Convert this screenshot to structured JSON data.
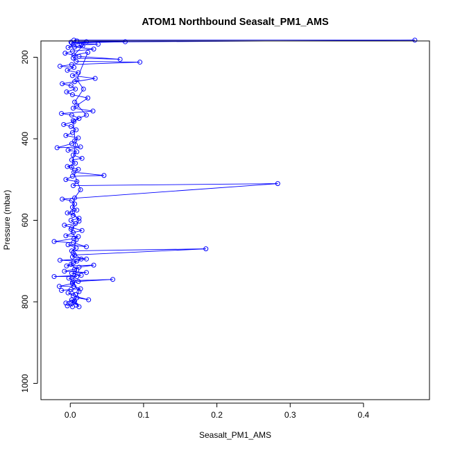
{
  "chart_data": {
    "type": "scatter",
    "title": "ATOM1 Northbound Seasalt_PM1_AMS",
    "xlabel": "Seasalt_PM1_AMS",
    "ylabel": "Pressure (mbar)",
    "xlim": [
      -0.04,
      0.49
    ],
    "ylim": [
      1040,
      160
    ],
    "y_reversed": true,
    "x_ticks": [
      0.0,
      0.1,
      0.2,
      0.3,
      0.4
    ],
    "x_tick_labels": [
      "0.0",
      "0.1",
      "0.2",
      "0.3",
      "0.4"
    ],
    "y_ticks": [
      200,
      400,
      600,
      800,
      1000
    ],
    "y_tick_labels": [
      "200",
      "400",
      "600",
      "800",
      "1000"
    ],
    "grid": false,
    "legend": "none",
    "series": [
      {
        "color": "#0000ff",
        "marker": "open-circle",
        "connected": true,
        "points": [
          [
            0.003,
            812
          ],
          [
            0.001,
            805
          ],
          [
            -0.004,
            810
          ],
          [
            0.006,
            798
          ],
          [
            0.012,
            812
          ],
          [
            0.002,
            795
          ],
          [
            -0.006,
            803
          ],
          [
            0.009,
            790
          ],
          [
            0.025,
            795
          ],
          [
            0.004,
            785
          ],
          [
            -0.003,
            778
          ],
          [
            0.007,
            782
          ],
          [
            0.001,
            770
          ],
          [
            -0.012,
            772
          ],
          [
            0.014,
            768
          ],
          [
            0.005,
            762
          ],
          [
            -0.015,
            762
          ],
          [
            0.003,
            755
          ],
          [
            0.011,
            750
          ],
          [
            0.058,
            745
          ],
          [
            0.004,
            748
          ],
          [
            -0.002,
            742
          ],
          [
            0.009,
            738
          ],
          [
            -0.022,
            738
          ],
          [
            0.015,
            735
          ],
          [
            0.002,
            730
          ],
          [
            0.022,
            728
          ],
          [
            -0.008,
            725
          ],
          [
            0.006,
            720
          ],
          [
            0.012,
            715
          ],
          [
            0.032,
            710
          ],
          [
            -0.005,
            712
          ],
          [
            0.004,
            705
          ],
          [
            0.009,
            700
          ],
          [
            -0.014,
            698
          ],
          [
            0.022,
            695
          ],
          [
            0.003,
            690
          ],
          [
            0.006,
            685
          ],
          [
            0.185,
            670
          ],
          [
            0.002,
            675
          ],
          [
            0.008,
            668
          ],
          [
            -0.003,
            660
          ],
          [
            0.022,
            665
          ],
          [
            0.004,
            655
          ],
          [
            -0.022,
            652
          ],
          [
            0.005,
            645
          ],
          [
            0.011,
            640
          ],
          [
            -0.006,
            638
          ],
          [
            0.004,
            630
          ],
          [
            0.016,
            625
          ],
          [
            0.002,
            618
          ],
          [
            -0.008,
            612
          ],
          [
            0.007,
            608
          ],
          [
            0.001,
            600
          ],
          [
            0.012,
            595
          ],
          [
            0.004,
            588
          ],
          [
            -0.004,
            582
          ],
          [
            0.009,
            575
          ],
          [
            0.003,
            568
          ],
          [
            0.006,
            560
          ],
          [
            0.002,
            552
          ],
          [
            -0.011,
            548
          ],
          [
            0.283,
            510
          ],
          [
            0.004,
            515
          ],
          [
            0.009,
            505
          ],
          [
            -0.006,
            500
          ],
          [
            0.003,
            492
          ],
          [
            0.046,
            490
          ],
          [
            0.005,
            482
          ],
          [
            0.011,
            475
          ],
          [
            -0.004,
            468
          ],
          [
            0.007,
            460
          ],
          [
            0.002,
            452
          ],
          [
            0.016,
            448
          ],
          [
            0.004,
            440
          ],
          [
            0.009,
            432
          ],
          [
            -0.003,
            428
          ],
          [
            0.014,
            420
          ],
          [
            -0.018,
            422
          ],
          [
            0.002,
            412
          ],
          [
            0.006,
            405
          ],
          [
            0.011,
            398
          ],
          [
            -0.006,
            392
          ],
          [
            0.003,
            385
          ],
          [
            0.008,
            378
          ],
          [
            0.001,
            370
          ],
          [
            -0.009,
            365
          ],
          [
            0.005,
            358
          ],
          [
            0.012,
            350
          ],
          [
            0.002,
            342
          ],
          [
            -0.012,
            338
          ],
          [
            0.031,
            332
          ],
          [
            0.004,
            325
          ],
          [
            0.009,
            318
          ],
          [
            0.024,
            300
          ],
          [
            0.003,
            292
          ],
          [
            -0.005,
            285
          ],
          [
            0.007,
            278
          ],
          [
            0.001,
            270
          ],
          [
            -0.011,
            265
          ],
          [
            0.006,
            260
          ],
          [
            0.034,
            252
          ],
          [
            0.003,
            245
          ],
          [
            0.011,
            238
          ],
          [
            -0.004,
            232
          ],
          [
            0.005,
            225
          ],
          [
            -0.014,
            222
          ],
          [
            0.002,
            218
          ],
          [
            0.095,
            212
          ],
          [
            0.008,
            210
          ],
          [
            0.004,
            202
          ],
          [
            0.068,
            205
          ],
          [
            0.012,
            198
          ],
          [
            -0.007,
            190
          ],
          [
            0.003,
            185
          ],
          [
            0.032,
            180
          ],
          [
            0.006,
            175
          ],
          [
            0.015,
            170
          ],
          [
            0.038,
            168
          ],
          [
            0.002,
            165
          ],
          [
            0.075,
            162
          ],
          [
            0.009,
            160
          ],
          [
            0.005,
            158
          ],
          [
            0.47,
            158
          ],
          [
            0.001,
            163
          ],
          [
            0.022,
            162
          ],
          [
            0.004,
            170
          ],
          [
            -0.003,
            176
          ],
          [
            0.017,
            172
          ],
          [
            0.005,
            195
          ],
          [
            0.024,
            188
          ],
          [
            0.009,
            255
          ],
          [
            0.018,
            278
          ],
          [
            0.006,
            310
          ],
          [
            0.022,
            342
          ],
          [
            0.004,
            355
          ],
          [
            0.007,
            415
          ],
          [
            0.002,
            470
          ],
          [
            0.014,
            525
          ],
          [
            0.006,
            545
          ],
          [
            0.003,
            580
          ],
          [
            0.012,
            602
          ],
          [
            0.001,
            622
          ],
          [
            0.008,
            648
          ],
          [
            0.004,
            680
          ],
          [
            0.015,
            695
          ],
          [
            0.001,
            708
          ],
          [
            0.009,
            722
          ],
          [
            0.003,
            752
          ],
          [
            0.012,
            775
          ],
          [
            0.005,
            800
          ],
          [
            0.008,
            808
          ]
        ]
      }
    ]
  }
}
